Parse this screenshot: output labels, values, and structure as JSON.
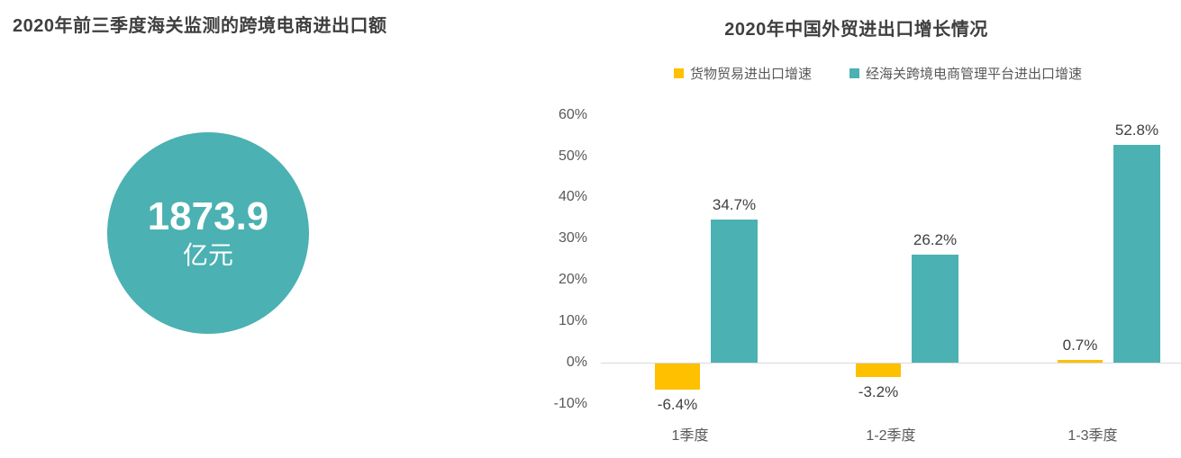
{
  "left_panel": {
    "title": "2020年前三季度海关监测的跨境电商进出口额",
    "circle": {
      "value": "1873.9",
      "unit": "亿元",
      "color": "#4BB1B2",
      "text_color": "#FFFFFF"
    }
  },
  "right_panel": {
    "title": "2020年中国外贸进出口增长情况"
  },
  "chart_data": {
    "type": "bar",
    "title": "2020年中国外贸进出口增长情况",
    "categories": [
      "1季度",
      "1-2季度",
      "1-3季度"
    ],
    "series": [
      {
        "name": "货物贸易进出口增速",
        "color": "#FFC000",
        "values": [
          -6.4,
          -3.2,
          0.7
        ]
      },
      {
        "name": "经海关跨境电商管理平台进出口增速",
        "color": "#4BB1B2",
        "values": [
          34.7,
          26.2,
          52.8
        ]
      }
    ],
    "data_labels": [
      "-6.4%",
      "34.7%",
      "-3.2%",
      "26.2%",
      "0.7%",
      "52.8%"
    ],
    "y_ticks": [
      60,
      50,
      40,
      30,
      20,
      10,
      0,
      -10
    ],
    "y_tick_suffix": "%",
    "ylim": [
      -10,
      60
    ],
    "grid": false,
    "legend_position": "top",
    "axis_line_color": "#D9D9D9",
    "tick_label_color": "#595959",
    "data_label_color": "#404040"
  }
}
